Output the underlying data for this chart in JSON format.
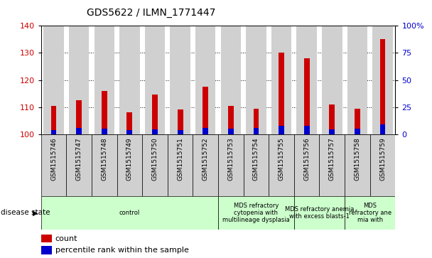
{
  "title": "GDS5622 / ILMN_1771447",
  "samples": [
    "GSM1515746",
    "GSM1515747",
    "GSM1515748",
    "GSM1515749",
    "GSM1515750",
    "GSM1515751",
    "GSM1515752",
    "GSM1515753",
    "GSM1515754",
    "GSM1515755",
    "GSM1515756",
    "GSM1515757",
    "GSM1515758",
    "GSM1515759"
  ],
  "count_values": [
    110.5,
    112.5,
    116.0,
    108.0,
    114.5,
    109.0,
    117.5,
    110.5,
    109.5,
    130.0,
    128.0,
    111.0,
    109.5,
    135.0
  ],
  "percentile_values": [
    4.0,
    5.5,
    5.0,
    3.5,
    4.5,
    3.5,
    5.5,
    5.0,
    5.5,
    8.0,
    7.5,
    4.5,
    5.0,
    9.0
  ],
  "ymin": 100,
  "ymax": 140,
  "yticks_left": [
    100,
    110,
    120,
    130,
    140
  ],
  "yticks_right": [
    0,
    25,
    50,
    75,
    100
  ],
  "bar_color_red": "#cc0000",
  "bar_color_blue": "#0000cc",
  "background_bar": "#d0d0d0",
  "background_plot": "#ffffff",
  "disease_groups": [
    {
      "label": "control",
      "start": 0,
      "end": 7
    },
    {
      "label": "MDS refractory\ncytopenia with\nmultilineage dysplasia",
      "start": 7,
      "end": 10
    },
    {
      "label": "MDS refractory anemia\nwith excess blasts-1",
      "start": 10,
      "end": 12
    },
    {
      "label": "MDS\nrefractory ane\nmia with",
      "start": 12,
      "end": 14
    }
  ],
  "disease_state_label": "disease state",
  "legend_count_label": "count",
  "legend_percentile_label": "percentile rank within the sample",
  "group_color": "#ccffcc"
}
